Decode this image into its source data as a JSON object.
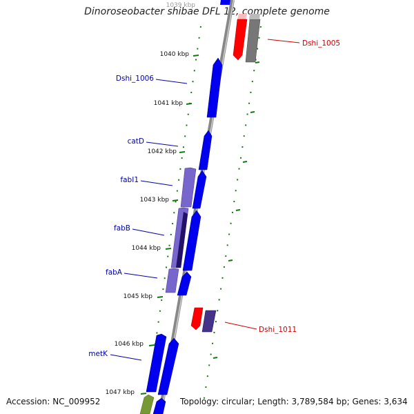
{
  "title": "Dinoroseobacter shibae DFL 12, complete genome",
  "footer": {
    "accession": "Accession: NC_009952",
    "stats": "Topology: circular; Length: 3,789,584 bp; Genes: 3,634"
  },
  "kbp_labels": [
    "1039 kbp",
    "1040 kbp",
    "1041 kbp",
    "1042 kbp",
    "1043 kbp",
    "1044 kbp",
    "1045 kbp",
    "1046 kbp",
    "1047 kbp"
  ],
  "gene_labels": {
    "dshi_1005": "Dshi_1005",
    "dshi_1006": "Dshi_1006",
    "catD": "catD",
    "fabI1": "fabI1",
    "fabB": "fabB",
    "fabA": "fabA",
    "dshi_1011": "Dshi_1011",
    "metK": "metK"
  },
  "colors": {
    "cds_forward": "#0000ee",
    "cds_forward_light": "#7766cc",
    "cds_dark": "#221166",
    "reverse_red": "#ff0000",
    "reverse_gray": "#777777",
    "olive": "#779933",
    "backbone": "#888888",
    "tick_green": "#117711",
    "label_blue": "#0000aa",
    "label_red": "#cc0000"
  }
}
